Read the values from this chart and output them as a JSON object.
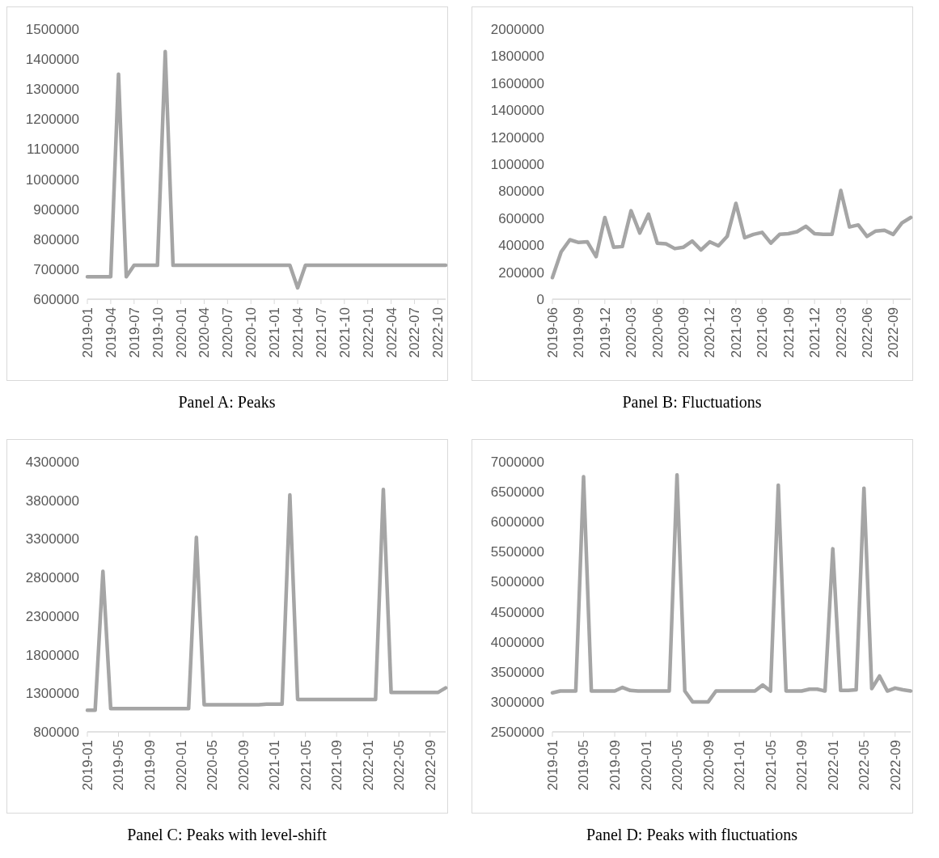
{
  "chart_data": [
    {
      "type": "line",
      "title": "Panel A: Peaks",
      "categories": [
        "2019-01",
        null,
        null,
        "2019-04",
        null,
        null,
        "2019-07",
        null,
        null,
        "2019-10",
        null,
        null,
        "2020-01",
        null,
        null,
        "2020-04",
        null,
        null,
        "2020-07",
        null,
        null,
        "2020-10",
        null,
        null,
        "2021-01",
        null,
        null,
        "2021-04",
        null,
        null,
        "2021-07",
        null,
        null,
        "2021-10",
        null,
        null,
        "2022-01",
        null,
        null,
        "2022-04",
        null,
        null,
        "2022-07",
        null,
        null,
        "2022-10",
        null
      ],
      "series": [
        {
          "color": "#a5a5a5",
          "values": [
            675000,
            675000,
            675000,
            675000,
            1350000,
            675000,
            713000,
            713000,
            713000,
            713000,
            1425000,
            713000,
            713000,
            713000,
            713000,
            713000,
            713000,
            713000,
            713000,
            713000,
            713000,
            713000,
            713000,
            713000,
            713000,
            713000,
            713000,
            638000,
            713000,
            713000,
            713000,
            713000,
            713000,
            713000,
            713000,
            713000,
            713000,
            713000,
            713000,
            713000,
            713000,
            713000,
            713000,
            713000,
            713000,
            713000,
            713000
          ]
        }
      ],
      "ylim": [
        600000,
        1500000
      ],
      "yticks": [
        600000,
        700000,
        800000,
        900000,
        1000000,
        1100000,
        1200000,
        1300000,
        1400000,
        1500000
      ],
      "grid": false,
      "line_style": "solid",
      "marker": "none"
    },
    {
      "type": "line",
      "title": "Panel B: Fluctuations",
      "categories": [
        "2019-06",
        null,
        null,
        "2019-09",
        null,
        null,
        "2019-12",
        null,
        null,
        "2020-03",
        null,
        null,
        "2020-06",
        null,
        null,
        "2020-09",
        null,
        null,
        "2020-12",
        null,
        null,
        "2021-03",
        null,
        null,
        "2021-06",
        null,
        null,
        "2021-09",
        null,
        null,
        "2021-12",
        null,
        null,
        "2022-03",
        null,
        null,
        "2022-06",
        null,
        null,
        "2022-09",
        null,
        null
      ],
      "series": [
        {
          "color": "#a5a5a5",
          "values": [
            160000,
            350000,
            440000,
            420000,
            425000,
            315000,
            605000,
            385000,
            390000,
            655000,
            490000,
            630000,
            415000,
            410000,
            375000,
            385000,
            430000,
            365000,
            425000,
            395000,
            465000,
            710000,
            455000,
            480000,
            495000,
            415000,
            480000,
            485000,
            500000,
            540000,
            485000,
            480000,
            480000,
            805000,
            535000,
            550000,
            465000,
            505000,
            510000,
            480000,
            565000,
            605000
          ]
        }
      ],
      "ylim": [
        0,
        2000000
      ],
      "yticks": [
        0,
        200000,
        400000,
        600000,
        800000,
        1000000,
        1200000,
        1400000,
        1600000,
        1800000,
        2000000
      ],
      "grid": false,
      "line_style": "solid",
      "marker": "none"
    },
    {
      "type": "line",
      "title": "Panel C: Peaks with level-shift",
      "categories": [
        "2019-01",
        null,
        null,
        null,
        "2019-05",
        null,
        null,
        null,
        "2019-09",
        null,
        null,
        null,
        "2020-01",
        null,
        null,
        null,
        "2020-05",
        null,
        null,
        null,
        "2020-09",
        null,
        null,
        null,
        "2021-01",
        null,
        null,
        null,
        "2021-05",
        null,
        null,
        null,
        "2021-09",
        null,
        null,
        null,
        "2022-01",
        null,
        null,
        null,
        "2022-05",
        null,
        null,
        null,
        "2022-09",
        null,
        null
      ],
      "series": [
        {
          "color": "#a5a5a5",
          "values": [
            1080000,
            1080000,
            2880000,
            1100000,
            1100000,
            1100000,
            1100000,
            1100000,
            1100000,
            1100000,
            1100000,
            1100000,
            1100000,
            1100000,
            3320000,
            1150000,
            1150000,
            1150000,
            1150000,
            1150000,
            1150000,
            1150000,
            1150000,
            1160000,
            1160000,
            1160000,
            3870000,
            1220000,
            1220000,
            1220000,
            1220000,
            1220000,
            1220000,
            1220000,
            1220000,
            1220000,
            1220000,
            1220000,
            3940000,
            1310000,
            1310000,
            1310000,
            1310000,
            1310000,
            1310000,
            1310000,
            1370000
          ]
        }
      ],
      "ylim": [
        800000,
        4300000
      ],
      "yticks": [
        800000,
        1300000,
        1800000,
        2300000,
        2800000,
        3300000,
        3800000,
        4300000
      ],
      "grid": false,
      "line_style": "solid",
      "marker": "none"
    },
    {
      "type": "line",
      "title": "Panel D: Peaks with fluctuations",
      "categories": [
        "2019-01",
        null,
        null,
        null,
        "2019-05",
        null,
        null,
        null,
        "2019-09",
        null,
        null,
        null,
        "2020-01",
        null,
        null,
        null,
        "2020-05",
        null,
        null,
        null,
        "2020-09",
        null,
        null,
        null,
        "2021-01",
        null,
        null,
        null,
        "2021-05",
        null,
        null,
        null,
        "2021-09",
        null,
        null,
        null,
        "2022-01",
        null,
        null,
        null,
        "2022-05",
        null,
        null,
        null,
        "2022-09",
        null,
        null
      ],
      "series": [
        {
          "color": "#a5a5a5",
          "values": [
            3150000,
            3180000,
            3180000,
            3180000,
            6750000,
            3180000,
            3180000,
            3180000,
            3180000,
            3240000,
            3190000,
            3180000,
            3180000,
            3180000,
            3180000,
            3180000,
            6780000,
            3180000,
            3000000,
            3000000,
            3000000,
            3180000,
            3180000,
            3180000,
            3180000,
            3180000,
            3180000,
            3280000,
            3180000,
            6610000,
            3180000,
            3180000,
            3180000,
            3210000,
            3210000,
            3180000,
            5550000,
            3190000,
            3190000,
            3200000,
            6560000,
            3220000,
            3430000,
            3180000,
            3230000,
            3200000,
            3180000
          ]
        }
      ],
      "ylim": [
        2500000,
        7000000
      ],
      "yticks": [
        2500000,
        3000000,
        3500000,
        4000000,
        4500000,
        5000000,
        5500000,
        6000000,
        6500000,
        7000000
      ],
      "grid": false,
      "line_style": "solid",
      "marker": "none"
    }
  ]
}
